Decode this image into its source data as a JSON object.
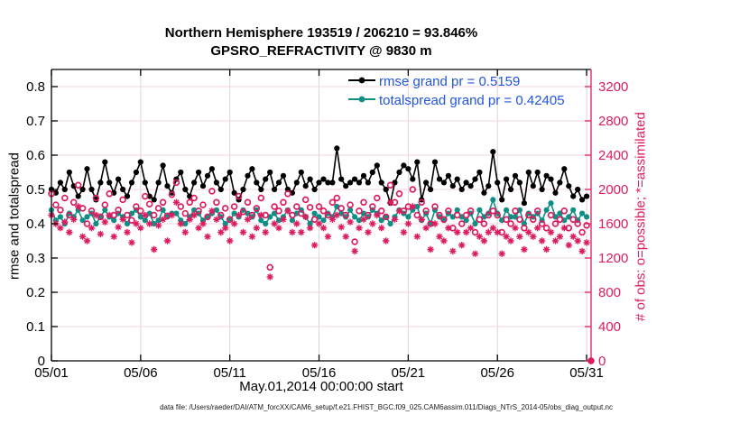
{
  "footer": {
    "text": "data file: /Users/raeder/DAI/ATM_forcXX/CAM6_setup/f.e21.FHIST_BGC.f09_025.CAM6assim.011/Diags_NTrS_2014-05/obs_diag_output.nc"
  },
  "chart_data": {
    "type": "line",
    "title": "Northern Hemisphere 193519 / 206210 = 93.846%",
    "subtitle": "GPSRO_REFRACTIVITY @ 9830 m",
    "xlabel": "May.01,2014 00:00:00 start",
    "ylabel_left": "rmse and totalspread",
    "ylabel_right": "# of obs: o=possible; *=assimilated",
    "legend_position": "top-center-inside",
    "grid": true,
    "colors": {
      "rmse": "#000000",
      "totalspread": "#0f8e86",
      "obs_counts": "#dd1c5f",
      "legend_text": "#2255dd",
      "grid_horizontal": "#f4d6df",
      "grid_vertical": "#ded4d7"
    },
    "x_axis": {
      "range_days": [
        0,
        30.25
      ],
      "tick_days": [
        0,
        5,
        10,
        15,
        20,
        25,
        30
      ],
      "tick_labels": [
        "05/01",
        "05/06",
        "05/11",
        "05/16",
        "05/21",
        "05/26",
        "05/31"
      ]
    },
    "left_axis": {
      "lim": [
        0,
        0.85
      ],
      "ticks": [
        0,
        0.1,
        0.2,
        0.3,
        0.4,
        0.5,
        0.6,
        0.7,
        0.8
      ],
      "tick_labels": [
        "0",
        "0.1",
        "0.2",
        "0.3",
        "0.4",
        "0.5",
        "0.6",
        "0.7",
        "0.8"
      ]
    },
    "right_axis": {
      "lim": [
        0,
        3400
      ],
      "ticks": [
        0,
        400,
        800,
        1200,
        1600,
        2000,
        2400,
        2800,
        3200
      ],
      "tick_labels": [
        "0",
        "400",
        "800",
        "1200",
        "1600",
        "2000",
        "2400",
        "2800",
        "3200"
      ]
    },
    "series": [
      {
        "name": "rmse",
        "legend": "rmse grand pr = 0.5159",
        "grand_mean": 0.5159,
        "axis": "left",
        "style": "line-dot",
        "color": "#000000",
        "x_start_day": 0,
        "x_step_days": 0.25,
        "values": [
          0.5,
          0.49,
          0.52,
          0.5,
          0.55,
          0.51,
          0.48,
          0.5,
          0.56,
          0.5,
          0.47,
          0.52,
          0.58,
          0.52,
          0.49,
          0.53,
          0.5,
          0.48,
          0.52,
          0.55,
          0.58,
          0.52,
          0.48,
          0.47,
          0.52,
          0.57,
          0.51,
          0.49,
          0.53,
          0.55,
          0.5,
          0.48,
          0.52,
          0.55,
          0.51,
          0.54,
          0.56,
          0.52,
          0.5,
          0.53,
          0.55,
          0.49,
          0.47,
          0.5,
          0.54,
          0.56,
          0.52,
          0.5,
          0.53,
          0.55,
          0.5,
          0.52,
          0.54,
          0.5,
          0.49,
          0.52,
          0.55,
          0.51,
          0.53,
          0.5,
          0.52,
          0.53,
          0.52,
          0.52,
          0.62,
          0.53,
          0.51,
          0.52,
          0.53,
          0.52,
          0.54,
          0.52,
          0.55,
          0.57,
          0.52,
          0.5,
          0.46,
          0.52,
          0.55,
          0.57,
          0.56,
          0.53,
          0.58,
          0.47,
          0.52,
          0.5,
          0.58,
          0.53,
          0.52,
          0.54,
          0.51,
          0.53,
          0.5,
          0.52,
          0.51,
          0.53,
          0.55,
          0.49,
          0.51,
          0.61,
          0.52,
          0.47,
          0.53,
          0.5,
          0.54,
          0.52,
          0.46,
          0.55,
          0.51,
          0.55,
          0.5,
          0.54,
          0.53,
          0.49,
          0.52,
          0.56,
          0.51,
          0.48,
          0.5,
          0.47,
          0.48
        ]
      },
      {
        "name": "totalspread",
        "legend": "totalspread grand pr = 0.42405",
        "grand_mean": 0.42405,
        "axis": "left",
        "style": "line-dot",
        "color": "#0f8e86",
        "x_start_day": 0,
        "x_step_days": 0.25,
        "values": [
          0.44,
          0.41,
          0.42,
          0.4,
          0.43,
          0.42,
          0.44,
          0.41,
          0.42,
          0.43,
          0.4,
          0.42,
          0.44,
          0.42,
          0.41,
          0.43,
          0.42,
          0.4,
          0.43,
          0.44,
          0.42,
          0.41,
          0.43,
          0.4,
          0.41,
          0.44,
          0.42,
          0.43,
          0.43,
          0.41,
          0.4,
          0.42,
          0.44,
          0.43,
          0.41,
          0.42,
          0.43,
          0.44,
          0.42,
          0.4,
          0.41,
          0.43,
          0.42,
          0.44,
          0.43,
          0.42,
          0.44,
          0.41,
          0.4,
          0.42,
          0.43,
          0.41,
          0.42,
          0.44,
          0.41,
          0.43,
          0.44,
          0.42,
          0.4,
          0.43,
          0.42,
          0.41,
          0.43,
          0.42,
          0.45,
          0.43,
          0.42,
          0.44,
          0.42,
          0.41,
          0.43,
          0.42,
          0.44,
          0.43,
          0.41,
          0.42,
          0.4,
          0.42,
          0.44,
          0.43,
          0.42,
          0.44,
          0.45,
          0.41,
          0.43,
          0.4,
          0.44,
          0.42,
          0.41,
          0.43,
          0.42,
          0.44,
          0.42,
          0.41,
          0.43,
          0.4,
          0.44,
          0.42,
          0.43,
          0.47,
          0.43,
          0.41,
          0.44,
          0.42,
          0.42,
          0.44,
          0.4,
          0.43,
          0.42,
          0.43,
          0.41,
          0.44,
          0.46,
          0.42,
          0.43,
          0.41,
          0.42,
          0.44,
          0.41,
          0.43,
          0.42
        ]
      },
      {
        "name": "possible-obs",
        "legend_symbol": "o",
        "meaning": "possible",
        "axis": "right",
        "style": "open-circle",
        "color": "#dd1c5f",
        "x_start_day": 0,
        "x_step_days": 0.25,
        "values": [
          1950,
          1820,
          1760,
          1900,
          1700,
          1850,
          2050,
          1780,
          1600,
          1750,
          1900,
          1680,
          1820,
          1950,
          1700,
          1760,
          1880,
          1700,
          1640,
          1800,
          1750,
          1920,
          1830,
          1700,
          1780,
          1850,
          1690,
          1940,
          2080,
          1800,
          1720,
          1850,
          1900,
          1750,
          1820,
          1680,
          1980,
          1850,
          1700,
          1780,
          1650,
          1800,
          1920,
          1740,
          1850,
          1700,
          1780,
          1900,
          1700,
          1090,
          1800,
          1750,
          1850,
          1950,
          1700,
          1800,
          1720,
          1880,
          1790,
          1650,
          1800,
          1750,
          1700,
          1850,
          1900,
          1780,
          1700,
          1820,
          1390,
          1750,
          1850,
          1700,
          1800,
          1900,
          1750,
          1680,
          2050,
          1850,
          1950,
          1750,
          1800,
          2000,
          1700,
          1850,
          1750,
          1600,
          1800,
          1700,
          1650,
          1750,
          1550,
          1700,
          1600,
          1700,
          1750,
          1500,
          1650,
          1600,
          1700,
          1750,
          1700,
          1500,
          1650,
          1600,
          1750,
          1650,
          1550,
          1700,
          1650,
          1750,
          1600,
          1550,
          1700,
          1600,
          1650,
          1750,
          1550,
          1650,
          1600,
          1500,
          1580,
          0
        ]
      },
      {
        "name": "assimilated-obs",
        "legend_symbol": "*",
        "meaning": "assimilated",
        "axis": "right",
        "style": "asterisk",
        "color": "#dd1c5f",
        "x_start_day": 0,
        "x_step_days": 0.25,
        "values": [
          1700,
          1600,
          1550,
          1620,
          1500,
          1650,
          1800,
          1450,
          1400,
          1550,
          1700,
          1480,
          1620,
          1700,
          1450,
          1560,
          1650,
          1500,
          1380,
          1600,
          1550,
          1700,
          1600,
          1300,
          1580,
          1650,
          1400,
          1700,
          1850,
          1600,
          1500,
          1650,
          1700,
          1550,
          1600,
          1450,
          1750,
          1650,
          1500,
          1550,
          1400,
          1600,
          1700,
          1500,
          1650,
          1450,
          1550,
          1700,
          1500,
          980,
          1600,
          1550,
          1650,
          1750,
          1500,
          1600,
          1500,
          1680,
          1550,
          1350,
          1600,
          1550,
          1450,
          1650,
          1700,
          1560,
          1450,
          1620,
          1280,
          1550,
          1650,
          1500,
          1600,
          1700,
          1550,
          1400,
          1850,
          1650,
          1750,
          1500,
          1600,
          1800,
          1450,
          1650,
          1550,
          1300,
          1600,
          1450,
          1400,
          1550,
          1280,
          1500,
          1350,
          1500,
          1550,
          1250,
          1450,
          1400,
          1500,
          1550,
          1500,
          1250,
          1450,
          1400,
          1550,
          1450,
          1300,
          1500,
          1450,
          1550,
          1400,
          1300,
          1500,
          1400,
          1450,
          1550,
          1350,
          1450,
          1400,
          1280,
          1380,
          0
        ]
      }
    ]
  }
}
